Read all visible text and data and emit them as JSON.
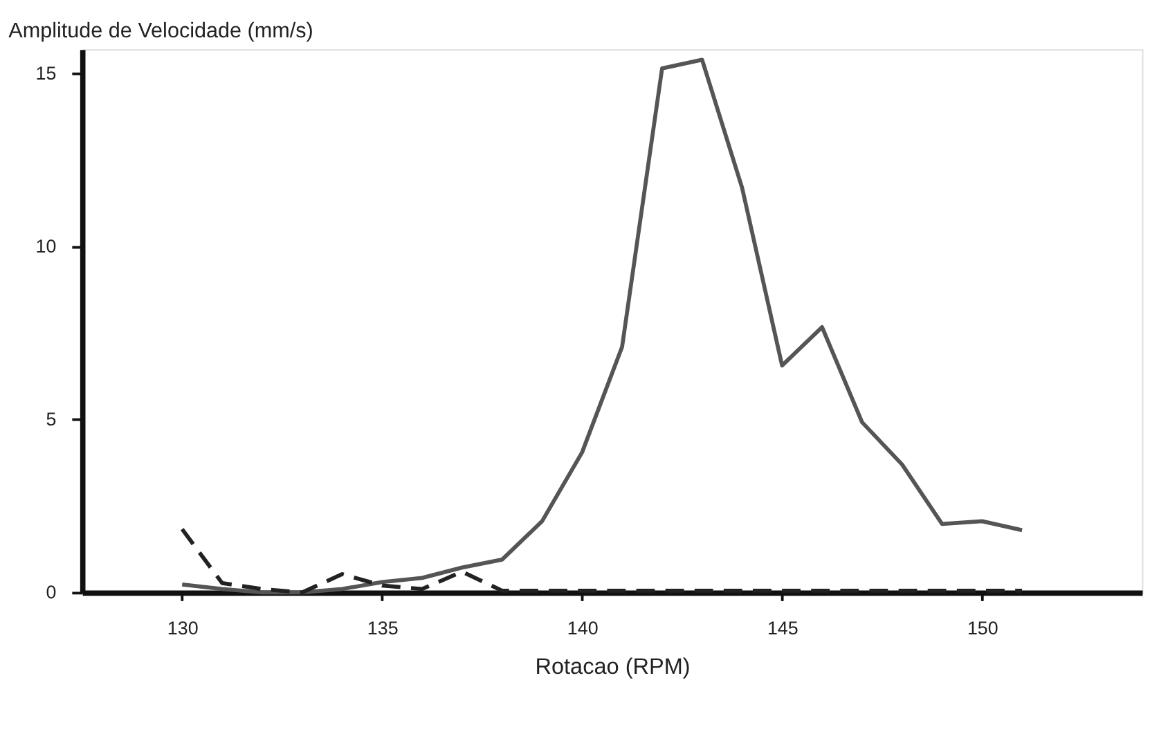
{
  "chart_data": {
    "type": "line",
    "ylabel": "Amplitude de Velocidade (mm/s)",
    "xlabel": "Rotacao (RPM)",
    "x": [
      130,
      131,
      132,
      133,
      134,
      135,
      136,
      137,
      138,
      139,
      140,
      141,
      142,
      143,
      144,
      145,
      146,
      147,
      148,
      149,
      150,
      151
    ],
    "series": [
      {
        "color": "#555555",
        "line_style": "solid",
        "values": [
          0.23,
          0.1,
          0.0,
          0.0,
          0.1,
          0.3,
          0.42,
          0.72,
          0.95,
          2.06,
          4.05,
          7.1,
          15.15,
          15.4,
          11.7,
          6.56,
          7.67,
          4.92,
          3.7,
          1.98,
          2.06,
          1.8
        ]
      },
      {
        "color": "#222222",
        "line_style": "dashed",
        "values": [
          1.83,
          0.27,
          0.1,
          0.0,
          0.53,
          0.2,
          0.1,
          0.6,
          0.05,
          0.05,
          0.05,
          0.05,
          0.05,
          0.05,
          0.05,
          0.05,
          0.05,
          0.05,
          0.05,
          0.05,
          0.05,
          0.05
        ]
      }
    ],
    "xlim": [
      127.5,
      154
    ],
    "xticks": [
      130,
      135,
      140,
      145,
      150
    ],
    "ylim": [
      0,
      15.7
    ],
    "yticks": [
      0,
      5,
      10,
      15
    ],
    "grid": false,
    "marker": "none"
  }
}
